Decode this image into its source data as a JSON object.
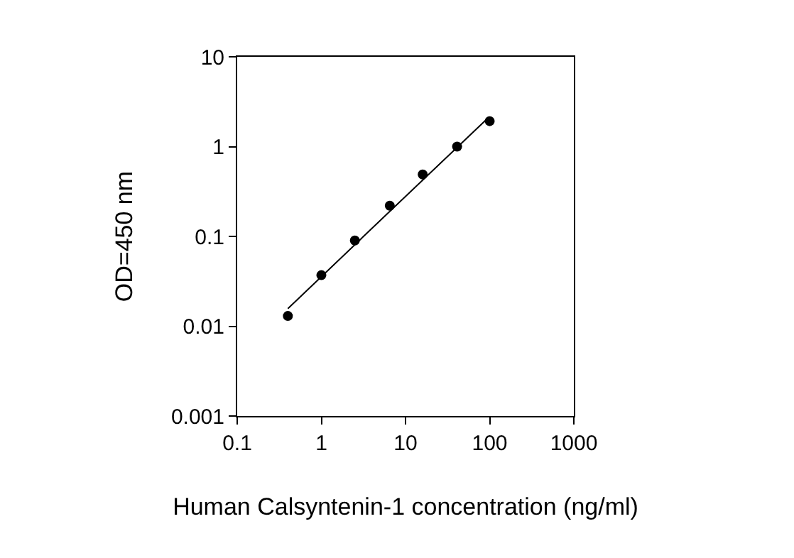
{
  "chart_data": {
    "type": "scatter",
    "xlabel": "Human Calsyntenin-1 concentration (ng/ml)",
    "ylabel": "OD=450 nm",
    "log": "xy",
    "grid": false,
    "marker": "circle",
    "xlim": [
      0.1,
      1000
    ],
    "xticks": [
      0.1,
      1,
      10,
      100,
      1000
    ],
    "ylim": [
      0.001,
      10
    ],
    "yticks": [
      0.001,
      0.01,
      0.1,
      1,
      10
    ],
    "series": [
      {
        "color": "#000000",
        "x": [
          0.4,
          1.0,
          2.5,
          6.5,
          16,
          41,
          100
        ],
        "values": [
          0.013,
          0.037,
          0.09,
          0.22,
          0.49,
          1.0,
          1.92
        ]
      },
      {
        "type": "line",
        "color": "#000000",
        "marker": "none",
        "line_style": "solid",
        "x": [
          0.4,
          6.5,
          95
        ],
        "values": [
          0.0157,
          0.19,
          2.07
        ]
      }
    ]
  }
}
